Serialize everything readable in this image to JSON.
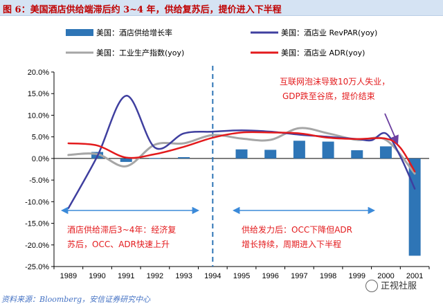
{
  "figure_title": "图 6：美国酒店供给端滞后约 3~4 年，供给复苏后，提价进入下半程",
  "source": "资料来源：Bloomberg，安信证券研究中心",
  "watermark": "正视社服",
  "colors": {
    "bar": "#2e75b6",
    "revpar": "#3f3f9f",
    "industrial": "#a6a6a6",
    "adr": "#e31a1c",
    "annotation_red": "#e31a1c",
    "arrow_blue": "#3b8ad9",
    "dashed_divider": "#2e75b6",
    "arrow_purple": "#6b3fa0"
  },
  "chart_data": {
    "type": "bar+line",
    "categories": [
      "1989",
      "1990",
      "1991",
      "1992",
      "1993",
      "1994",
      "1995",
      "1996",
      "1997",
      "1998",
      "1999",
      "2000",
      "2001"
    ],
    "ylim": [
      -25,
      20
    ],
    "yticks": [
      -25,
      -20,
      -15,
      -10,
      -5,
      0,
      5,
      10,
      15,
      20
    ],
    "ytick_labels": [
      "-25.0%",
      "-20.0%",
      "-15.0%",
      "-10.0%",
      "-5.0%",
      "0.0%",
      "5.0%",
      "10.0%",
      "15.0%",
      "20.0%"
    ],
    "legend": [
      {
        "label": "美国：酒店供给增长率",
        "kind": "bar",
        "series": "supply"
      },
      {
        "label": "美国：酒店业 RevPAR(yoy)",
        "kind": "line",
        "series": "revpar"
      },
      {
        "label": "美国：工业生产指数(yoy)",
        "kind": "line",
        "series": "industrial"
      },
      {
        "label": "美国：酒店业 ADR(yoy)",
        "kind": "line",
        "series": "adr"
      }
    ],
    "series": [
      {
        "name": "美国：酒店供给增长率",
        "key": "supply",
        "type": "bar",
        "values": [
          null,
          1.5,
          -0.8,
          0.1,
          0.3,
          null,
          2.1,
          2.0,
          4.1,
          3.9,
          1.9,
          2.8,
          -22.5
        ]
      },
      {
        "name": "美国：酒店业 RevPAR(yoy)",
        "key": "revpar",
        "type": "line",
        "x": [
          1989,
          1990,
          1991,
          1992,
          1993,
          1994,
          1995,
          1996,
          1997,
          1998,
          1999,
          1999.5,
          2000,
          2000.5,
          2001
        ],
        "values": [
          -11.5,
          0.5,
          14.5,
          2.5,
          5.8,
          6.2,
          6.5,
          6.2,
          5.5,
          5.0,
          4.5,
          4.2,
          5.8,
          0.5,
          -7.0
        ]
      },
      {
        "name": "美国：工业生产指数(yoy)",
        "key": "industrial",
        "type": "line",
        "x": [
          1989,
          1990,
          1991,
          1992,
          1993,
          1994,
          1995,
          1996,
          1997,
          1998,
          1999,
          2000,
          2001
        ],
        "values": [
          0.8,
          1.0,
          -1.8,
          3.2,
          3.5,
          5.4,
          4.6,
          4.3,
          7.0,
          5.8,
          4.3,
          4.3,
          -3.5
        ]
      },
      {
        "name": "美国：酒店业 ADR(yoy)",
        "key": "adr",
        "type": "line",
        "x": [
          1989,
          1990,
          1991,
          1992,
          1993,
          1994,
          1995,
          1996,
          1997,
          1998,
          1999,
          2000,
          2000.5,
          2001
        ],
        "values": [
          3.5,
          3.0,
          0.2,
          1.0,
          2.7,
          4.8,
          6.0,
          6.0,
          5.8,
          4.8,
          4.5,
          4.6,
          2.5,
          -3.0
        ]
      }
    ],
    "divider_year": 1994,
    "annotations": {
      "left": [
        "酒店供给滞后3~4年：经济复",
        "苏后，OCC、ADR快速上升"
      ],
      "mid": [
        "供给发力后：OCC下降但ADR",
        "增长持续，周期进入下半程"
      ],
      "top_right": [
        "互联网泡沫导致10万人失业，",
        "GDP跌至谷底，提价结束"
      ]
    }
  }
}
